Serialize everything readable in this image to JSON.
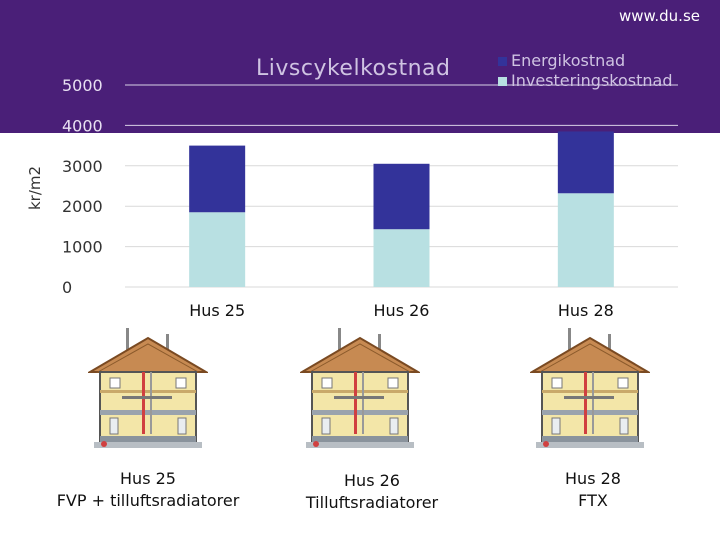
{
  "header": {
    "site": "www.du.se"
  },
  "chart_data": {
    "type": "bar",
    "stacked": true,
    "title": "Livscykelkostnad",
    "ylabel": "kr/m2",
    "categories": [
      "Hus 25",
      "Hus 26",
      "Hus 28"
    ],
    "ylim": [
      0,
      5000
    ],
    "yticks": [
      0,
      1000,
      2000,
      3000,
      4000,
      5000
    ],
    "series": [
      {
        "name": "Investeringskostnad",
        "values": [
          1850,
          1430,
          2320
        ],
        "color": "#b8e0e2"
      },
      {
        "name": "Energikostnad",
        "values": [
          1650,
          1620,
          1530
        ],
        "color": "#33339a"
      }
    ],
    "legend_position": "top-right",
    "grid": "horizontal"
  },
  "houses": [
    {
      "caption_line1": "Hus 25",
      "caption_line2": "FVP + tilluftsradiatorer",
      "icon": "house-cross-section-icon"
    },
    {
      "caption_line1": "Hus 26",
      "caption_line2": "Tilluftsradiatorer",
      "icon": "house-cross-section-icon"
    },
    {
      "caption_line1": "Hus 28",
      "caption_line2": "FTX",
      "icon": "house-cross-section-icon"
    }
  ]
}
